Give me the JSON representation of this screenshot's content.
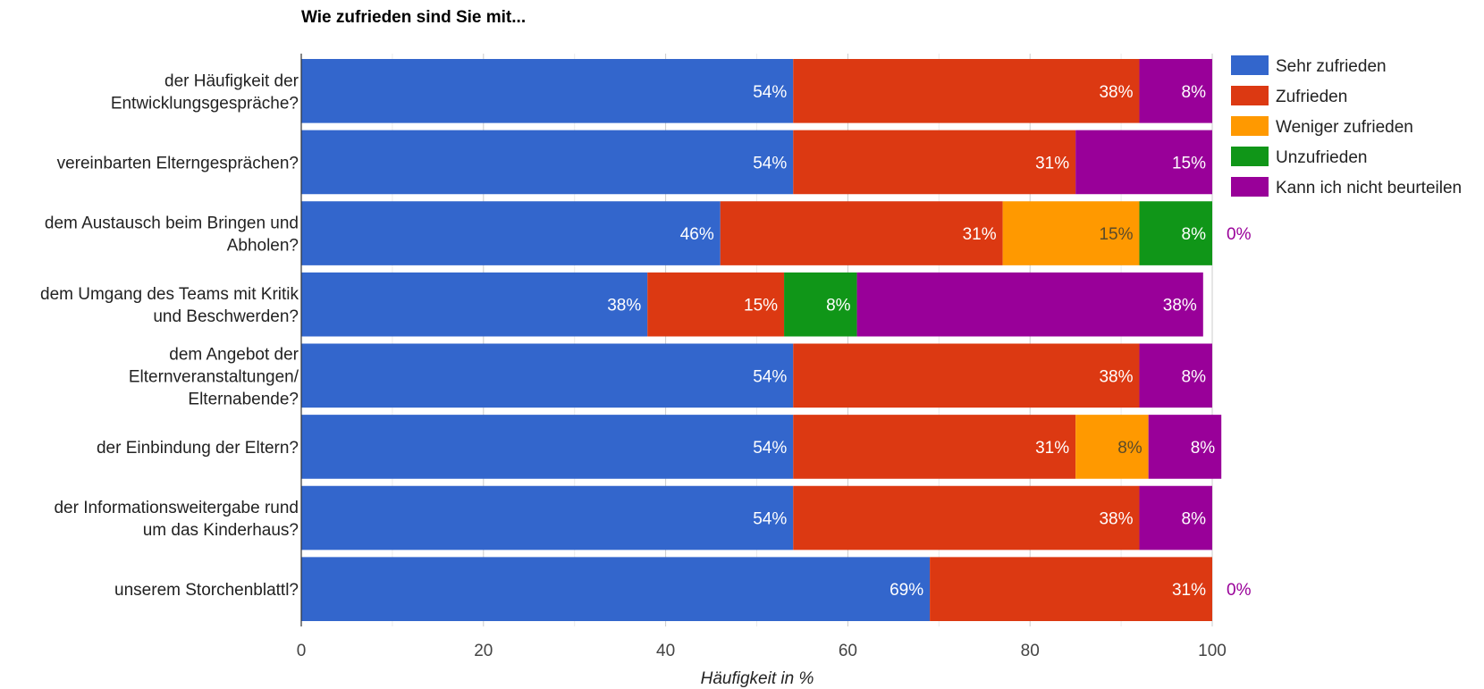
{
  "chart_data": {
    "type": "bar",
    "orientation": "horizontal",
    "stacked": true,
    "title": "Wie zufrieden sind Sie mit...",
    "xlabel": "Häufigkeit in %",
    "ylabel": "",
    "xlim": [
      0,
      100
    ],
    "xticks": [
      "0",
      "20",
      "40",
      "60",
      "80",
      "100"
    ],
    "grid": true,
    "legend_position": "right",
    "categories": [
      [
        "der Häufigkeit der",
        "Entwicklungsgespräche?"
      ],
      [
        "vereinbarten Elterngesprächen?"
      ],
      [
        "dem Austausch beim Bringen und",
        "Abholen?"
      ],
      [
        "dem Umgang des Teams mit Kritik",
        "und Beschwerden?"
      ],
      [
        "dem Angebot der",
        "Elternveranstaltungen/",
        "Elternabende?"
      ],
      [
        "der Einbindung der Eltern?"
      ],
      [
        "der Informationsweitergabe rund",
        "um das Kinderhaus?"
      ],
      [
        "unserem Storchenblattl?"
      ]
    ],
    "series": [
      {
        "name": "Sehr zufrieden",
        "color": "#3366cc",
        "label_color": "#ffffff",
        "values": [
          54,
          54,
          46,
          38,
          54,
          54,
          54,
          69
        ]
      },
      {
        "name": "Zufrieden",
        "color": "#dc3912",
        "label_color": "#ffffff",
        "values": [
          38,
          31,
          31,
          15,
          38,
          31,
          38,
          31
        ]
      },
      {
        "name": "Weniger zufrieden",
        "color": "#ff9900",
        "label_color": "#5a4a2a",
        "values": [
          0,
          0,
          15,
          0,
          0,
          8,
          0,
          0
        ]
      },
      {
        "name": "Unzufrieden",
        "color": "#109618",
        "label_color": "#ffffff",
        "values": [
          0,
          0,
          8,
          8,
          0,
          0,
          0,
          0
        ]
      },
      {
        "name": "Kann ich nicht beurteilen",
        "color": "#990099",
        "label_color": "#ffffff",
        "values": [
          8,
          15,
          0,
          38,
          8,
          8,
          8,
          0
        ]
      }
    ],
    "outside_labels": [
      {
        "category_index": 2,
        "text": "0%",
        "color": "#990099"
      },
      {
        "category_index": 7,
        "text": "0%",
        "color": "#990099"
      }
    ]
  }
}
